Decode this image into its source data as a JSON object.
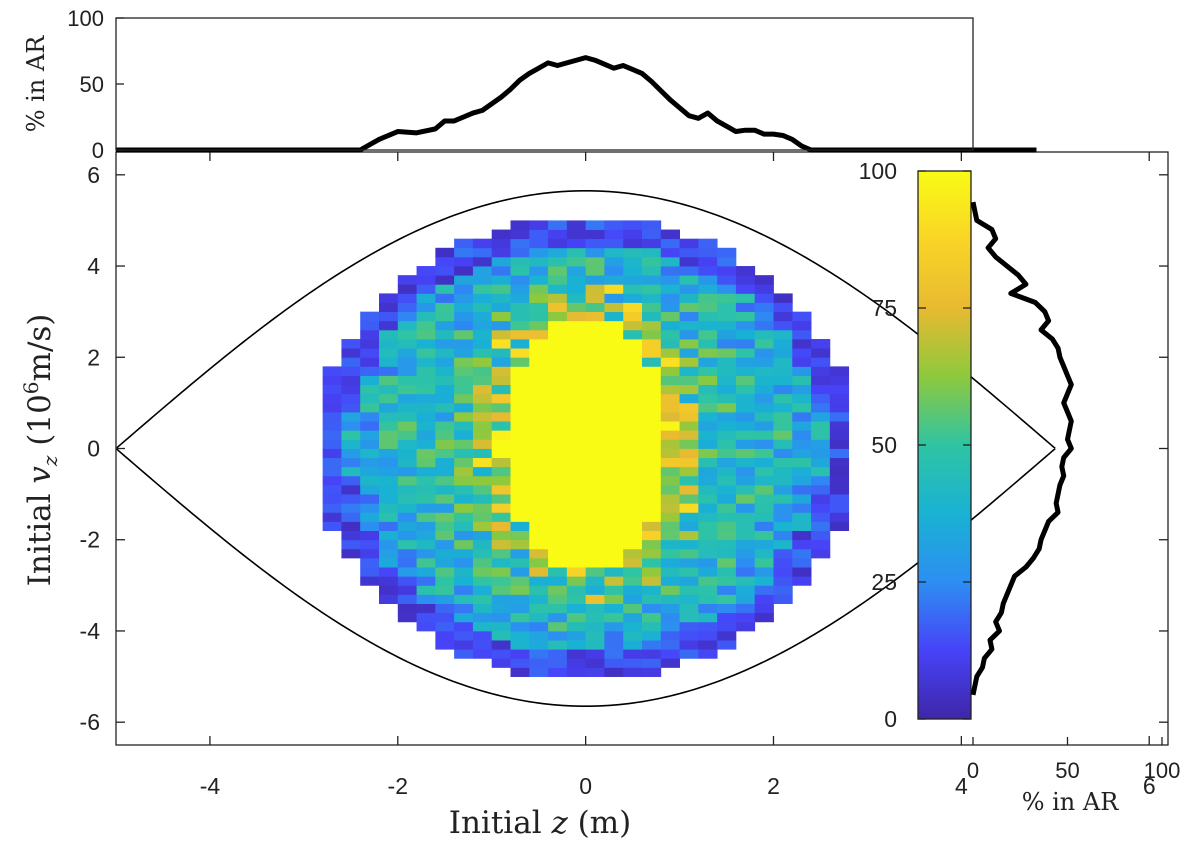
{
  "colors": {
    "colormap": [
      "#3e26a8",
      "#4743f8",
      "#2d8ef2",
      "#19b2d3",
      "#2fc4a3",
      "#8ec93d",
      "#e8ba31",
      "#f9d526",
      "#f9fb15"
    ],
    "curve": "#000000"
  },
  "chart_data": [
    {
      "id": "main",
      "type": "heatmap",
      "xlabel_parts": [
        "Initial ",
        "z",
        " (m)"
      ],
      "ylabel_parts": [
        "Initial ",
        "v",
        "z",
        " (10",
        "6",
        "m/s)"
      ],
      "xlim": [
        -5,
        6.2
      ],
      "ylim": [
        -6.5,
        6.5
      ],
      "xticks": [
        "-4",
        "-2",
        "0",
        "2",
        "4",
        "6"
      ],
      "yticks": [
        "6",
        "4",
        "2",
        "0",
        "-2",
        "-4",
        "-6"
      ],
      "bin_dz": 0.2,
      "bin_dvz": 0.2,
      "core_region": {
        "z_half_width_m": 0.9,
        "vz_half_height": 2.8,
        "vz_center": 0.1,
        "value": 100
      },
      "populated_region": {
        "z_half_width_m": 2.8,
        "vz_half_height": 4.95
      },
      "typical_outer_value": 20,
      "separatrix": {
        "z_half_width_m": 5.0,
        "vz_max": 5.65
      }
    },
    {
      "id": "colorbar",
      "type": "colorbar",
      "range": [
        0,
        100
      ],
      "ticks": [
        "100",
        "75",
        "50",
        "25",
        "0"
      ]
    },
    {
      "id": "top",
      "type": "line",
      "ylabel": "% in AR",
      "ylim": [
        0,
        100
      ],
      "yticks": [
        "100",
        "50",
        "0"
      ],
      "x": [
        -5,
        -4.5,
        -4,
        -3.5,
        -3,
        -2.6,
        -2.4,
        -2.2,
        -2.0,
        -1.8,
        -1.6,
        -1.5,
        -1.4,
        -1.3,
        -1.2,
        -1.1,
        -1.0,
        -0.9,
        -0.8,
        -0.7,
        -0.6,
        -0.5,
        -0.4,
        -0.3,
        -0.2,
        -0.1,
        0.0,
        0.1,
        0.2,
        0.3,
        0.4,
        0.5,
        0.6,
        0.7,
        0.8,
        0.9,
        1.0,
        1.1,
        1.2,
        1.3,
        1.4,
        1.5,
        1.6,
        1.7,
        1.8,
        1.9,
        2.0,
        2.1,
        2.2,
        2.3,
        2.4,
        2.5,
        2.6,
        2.8,
        3,
        3.5,
        4,
        4.5,
        4.8
      ],
      "values": [
        0,
        0,
        0,
        0,
        0,
        0,
        0,
        8,
        14,
        13,
        16,
        22,
        22,
        25,
        28,
        30,
        35,
        40,
        46,
        53,
        58,
        62,
        66,
        64,
        66,
        68,
        70,
        68,
        65,
        62,
        64,
        61,
        58,
        52,
        45,
        38,
        32,
        26,
        24,
        28,
        22,
        18,
        14,
        15,
        15,
        12,
        12,
        11,
        8,
        3,
        0,
        0,
        0,
        0,
        0,
        0,
        0,
        0,
        0
      ]
    },
    {
      "id": "right",
      "type": "line",
      "xlabel": "% in AR",
      "xlim": [
        0,
        100
      ],
      "xticks": [
        "0",
        "50",
        "100"
      ],
      "vz": [
        5.4,
        5.0,
        4.8,
        4.6,
        4.4,
        4.2,
        4.0,
        3.8,
        3.6,
        3.4,
        3.2,
        3.0,
        2.8,
        2.6,
        2.4,
        2.2,
        2.0,
        1.8,
        1.6,
        1.4,
        1.2,
        1.0,
        0.8,
        0.6,
        0.4,
        0.2,
        0.0,
        -0.2,
        -0.4,
        -0.6,
        -0.8,
        -1.0,
        -1.2,
        -1.4,
        -1.6,
        -1.8,
        -2.0,
        -2.2,
        -2.4,
        -2.6,
        -2.8,
        -3.0,
        -3.2,
        -3.4,
        -3.6,
        -3.8,
        -4.0,
        -4.2,
        -4.4,
        -4.6,
        -4.8,
        -5.0,
        -5.4
      ],
      "values": [
        0,
        2,
        10,
        12,
        8,
        12,
        18,
        24,
        28,
        20,
        33,
        38,
        40,
        36,
        42,
        45,
        46,
        48,
        50,
        52,
        50,
        48,
        50,
        52,
        51,
        50,
        52,
        48,
        47,
        48,
        46,
        45,
        44,
        45,
        40,
        38,
        36,
        35,
        32,
        28,
        22,
        20,
        18,
        16,
        15,
        12,
        14,
        9,
        10,
        6,
        5,
        2,
        0
      ]
    }
  ]
}
